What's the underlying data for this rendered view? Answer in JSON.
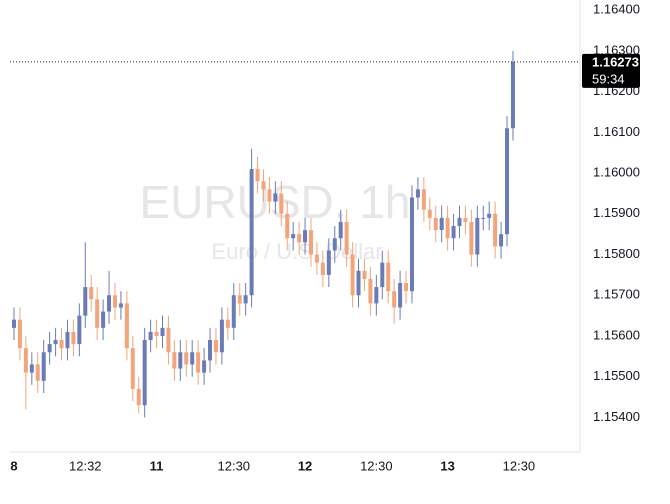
{
  "chart_data": {
    "type": "candlestick",
    "symbol": "EURUSD, 1h",
    "description": "Euro / U.S. Dollar",
    "categories": [
      "8",
      null,
      null,
      null,
      null,
      null,
      null,
      null,
      null,
      null,
      null,
      null,
      "12:32",
      null,
      null,
      null,
      null,
      null,
      null,
      null,
      null,
      null,
      null,
      null,
      "11",
      null,
      null,
      null,
      null,
      null,
      null,
      null,
      null,
      null,
      null,
      null,
      null,
      "12:30",
      null,
      null,
      null,
      null,
      null,
      null,
      null,
      null,
      null,
      null,
      null,
      "12",
      null,
      null,
      null,
      null,
      null,
      null,
      null,
      null,
      null,
      null,
      null,
      "12:30",
      null,
      null,
      null,
      null,
      null,
      null,
      null,
      null,
      null,
      null,
      null,
      "13",
      null,
      null,
      null,
      null,
      null,
      null,
      null,
      null,
      null,
      null,
      null,
      "12:30",
      null,
      null,
      null,
      null,
      null,
      null,
      null,
      null,
      null,
      null
    ],
    "open": [
      1.1562,
      1.1564,
      1.1557,
      1.1551,
      1.1553,
      1.1549,
      1.1556,
      1.1558,
      1.1559,
      1.1557,
      1.1561,
      1.1558,
      1.1565,
      1.1572,
      1.1569,
      1.1562,
      1.1566,
      1.157,
      1.1567,
      1.1568,
      1.1557,
      1.1547,
      1.1543,
      1.1559,
      1.1561,
      1.156,
      1.1562,
      1.1556,
      1.1552,
      1.1556,
      1.1553,
      1.1556,
      1.1551,
      1.1554,
      1.1559,
      1.1556,
      1.1564,
      1.1562,
      1.157,
      1.1568,
      1.157,
      1.1601,
      1.1598,
      1.1596,
      1.1593,
      1.1595,
      1.159,
      1.1584,
      1.1585,
      1.1583,
      1.1586,
      1.158,
      1.1578,
      1.1575,
      1.1581,
      1.1584,
      1.1588,
      1.158,
      1.157,
      1.1576,
      1.1574,
      1.1568,
      1.1572,
      1.1578,
      1.1571,
      1.1567,
      1.1573,
      1.1571,
      1.1594,
      1.1596,
      1.1591,
      1.1589,
      1.1586,
      1.1589,
      1.1584,
      1.1587,
      1.1589,
      1.1588,
      1.158,
      1.1589,
      1.1589,
      1.159,
      1.1582,
      1.1585,
      1.1611,
      null,
      null,
      null,
      null,
      null,
      null,
      null,
      null,
      null,
      null,
      null
    ],
    "high": [
      1.1567,
      1.1567,
      1.156,
      1.1556,
      1.1556,
      1.1559,
      1.1561,
      1.1562,
      1.1562,
      1.1564,
      1.1564,
      1.1568,
      1.1583,
      1.1575,
      1.1572,
      1.1569,
      1.1576,
      1.1573,
      1.1571,
      1.1571,
      1.156,
      1.155,
      1.1562,
      1.1564,
      1.1564,
      1.1565,
      1.1565,
      1.1559,
      1.1559,
      1.1559,
      1.1559,
      1.1559,
      1.1557,
      1.1562,
      1.1562,
      1.1567,
      1.1567,
      1.1573,
      1.1573,
      1.1573,
      1.1606,
      1.1604,
      1.1601,
      1.1599,
      1.1598,
      1.1598,
      1.1593,
      1.1588,
      1.1588,
      1.1589,
      1.1589,
      1.1583,
      1.1581,
      1.1584,
      1.1587,
      1.1591,
      1.1591,
      1.1583,
      1.1579,
      1.1579,
      1.1577,
      1.1575,
      1.1581,
      1.1581,
      1.1574,
      1.1576,
      1.1576,
      1.1597,
      1.1599,
      1.1599,
      1.1594,
      1.1592,
      1.1592,
      1.1592,
      1.159,
      1.1592,
      1.1592,
      1.1591,
      1.1592,
      1.1592,
      1.1593,
      1.1593,
      1.1588,
      1.1614,
      1.163,
      null,
      null,
      null,
      null,
      null,
      null,
      null,
      null,
      null,
      null,
      null
    ],
    "low": [
      1.1559,
      1.1554,
      1.1542,
      1.1548,
      1.1546,
      1.1546,
      1.1553,
      1.1555,
      1.1554,
      1.1554,
      1.1555,
      1.1555,
      1.1562,
      1.1566,
      1.1559,
      1.1559,
      1.1563,
      1.1564,
      1.1564,
      1.1554,
      1.1544,
      1.1541,
      1.154,
      1.1556,
      1.1557,
      1.1557,
      1.1553,
      1.1549,
      1.1549,
      1.155,
      1.155,
      1.1548,
      1.1548,
      1.1551,
      1.1553,
      1.1553,
      1.1559,
      1.1559,
      1.1565,
      1.1565,
      1.1567,
      1.1595,
      1.1593,
      1.159,
      1.159,
      1.1587,
      1.1581,
      1.1581,
      1.158,
      1.158,
      1.1577,
      1.1575,
      1.1572,
      1.1572,
      1.1578,
      1.1581,
      1.1577,
      1.1567,
      1.1567,
      1.1571,
      1.1565,
      1.1565,
      1.1569,
      1.1568,
      1.1563,
      1.1564,
      1.1568,
      1.1568,
      1.1591,
      1.1588,
      1.1586,
      1.1583,
      1.1583,
      1.1581,
      1.1581,
      1.1584,
      1.1585,
      1.1577,
      1.1577,
      1.1586,
      1.1586,
      1.1579,
      1.1579,
      1.1582,
      1.1608,
      null,
      null,
      null,
      null,
      null,
      null,
      null,
      null,
      null,
      null,
      null
    ],
    "close": [
      1.1564,
      1.1557,
      1.1551,
      1.1553,
      1.1549,
      1.1556,
      1.1558,
      1.1559,
      1.1557,
      1.1561,
      1.1558,
      1.1565,
      1.1572,
      1.1569,
      1.1562,
      1.1566,
      1.157,
      1.1567,
      1.1568,
      1.1557,
      1.1547,
      1.1543,
      1.1559,
      1.1561,
      1.156,
      1.1562,
      1.1556,
      1.1552,
      1.1556,
      1.1553,
      1.1556,
      1.1551,
      1.1554,
      1.1559,
      1.1556,
      1.1564,
      1.1562,
      1.157,
      1.1568,
      1.157,
      1.1601,
      1.1598,
      1.1596,
      1.1593,
      1.1595,
      1.159,
      1.1584,
      1.1585,
      1.1583,
      1.1586,
      1.158,
      1.1578,
      1.1575,
      1.1581,
      1.1584,
      1.1588,
      1.158,
      1.157,
      1.1576,
      1.1574,
      1.1568,
      1.1572,
      1.1578,
      1.1571,
      1.1567,
      1.1573,
      1.1571,
      1.1594,
      1.1596,
      1.1591,
      1.1589,
      1.1586,
      1.1589,
      1.1584,
      1.1587,
      1.1589,
      1.1588,
      1.158,
      1.1589,
      1.1589,
      1.159,
      1.1582,
      1.1585,
      1.1611,
      1.16273,
      null,
      null,
      null,
      null,
      null,
      null,
      null,
      null,
      null,
      null,
      null
    ],
    "up_color": "#6a7bb5",
    "down_color": "#f2a57a",
    "last_price": 1.16273,
    "countdown": "59:34",
    "ylim": [
      1.1532,
      1.16425
    ],
    "yticks": [
      {
        "value": 1.164,
        "label": "1.16400"
      },
      {
        "value": 1.163,
        "label": "1.16300"
      },
      {
        "value": 1.162,
        "label": "1.16200"
      },
      {
        "value": 1.161,
        "label": "1.16100"
      },
      {
        "value": 1.16,
        "label": "1.16000"
      },
      {
        "value": 1.159,
        "label": "1.15900"
      },
      {
        "value": 1.158,
        "label": "1.15800"
      },
      {
        "value": 1.157,
        "label": "1.15700"
      },
      {
        "value": 1.156,
        "label": "1.15600"
      },
      {
        "value": 1.155,
        "label": "1.15500"
      },
      {
        "value": 1.154,
        "label": "1.15400"
      }
    ],
    "grid": false
  }
}
